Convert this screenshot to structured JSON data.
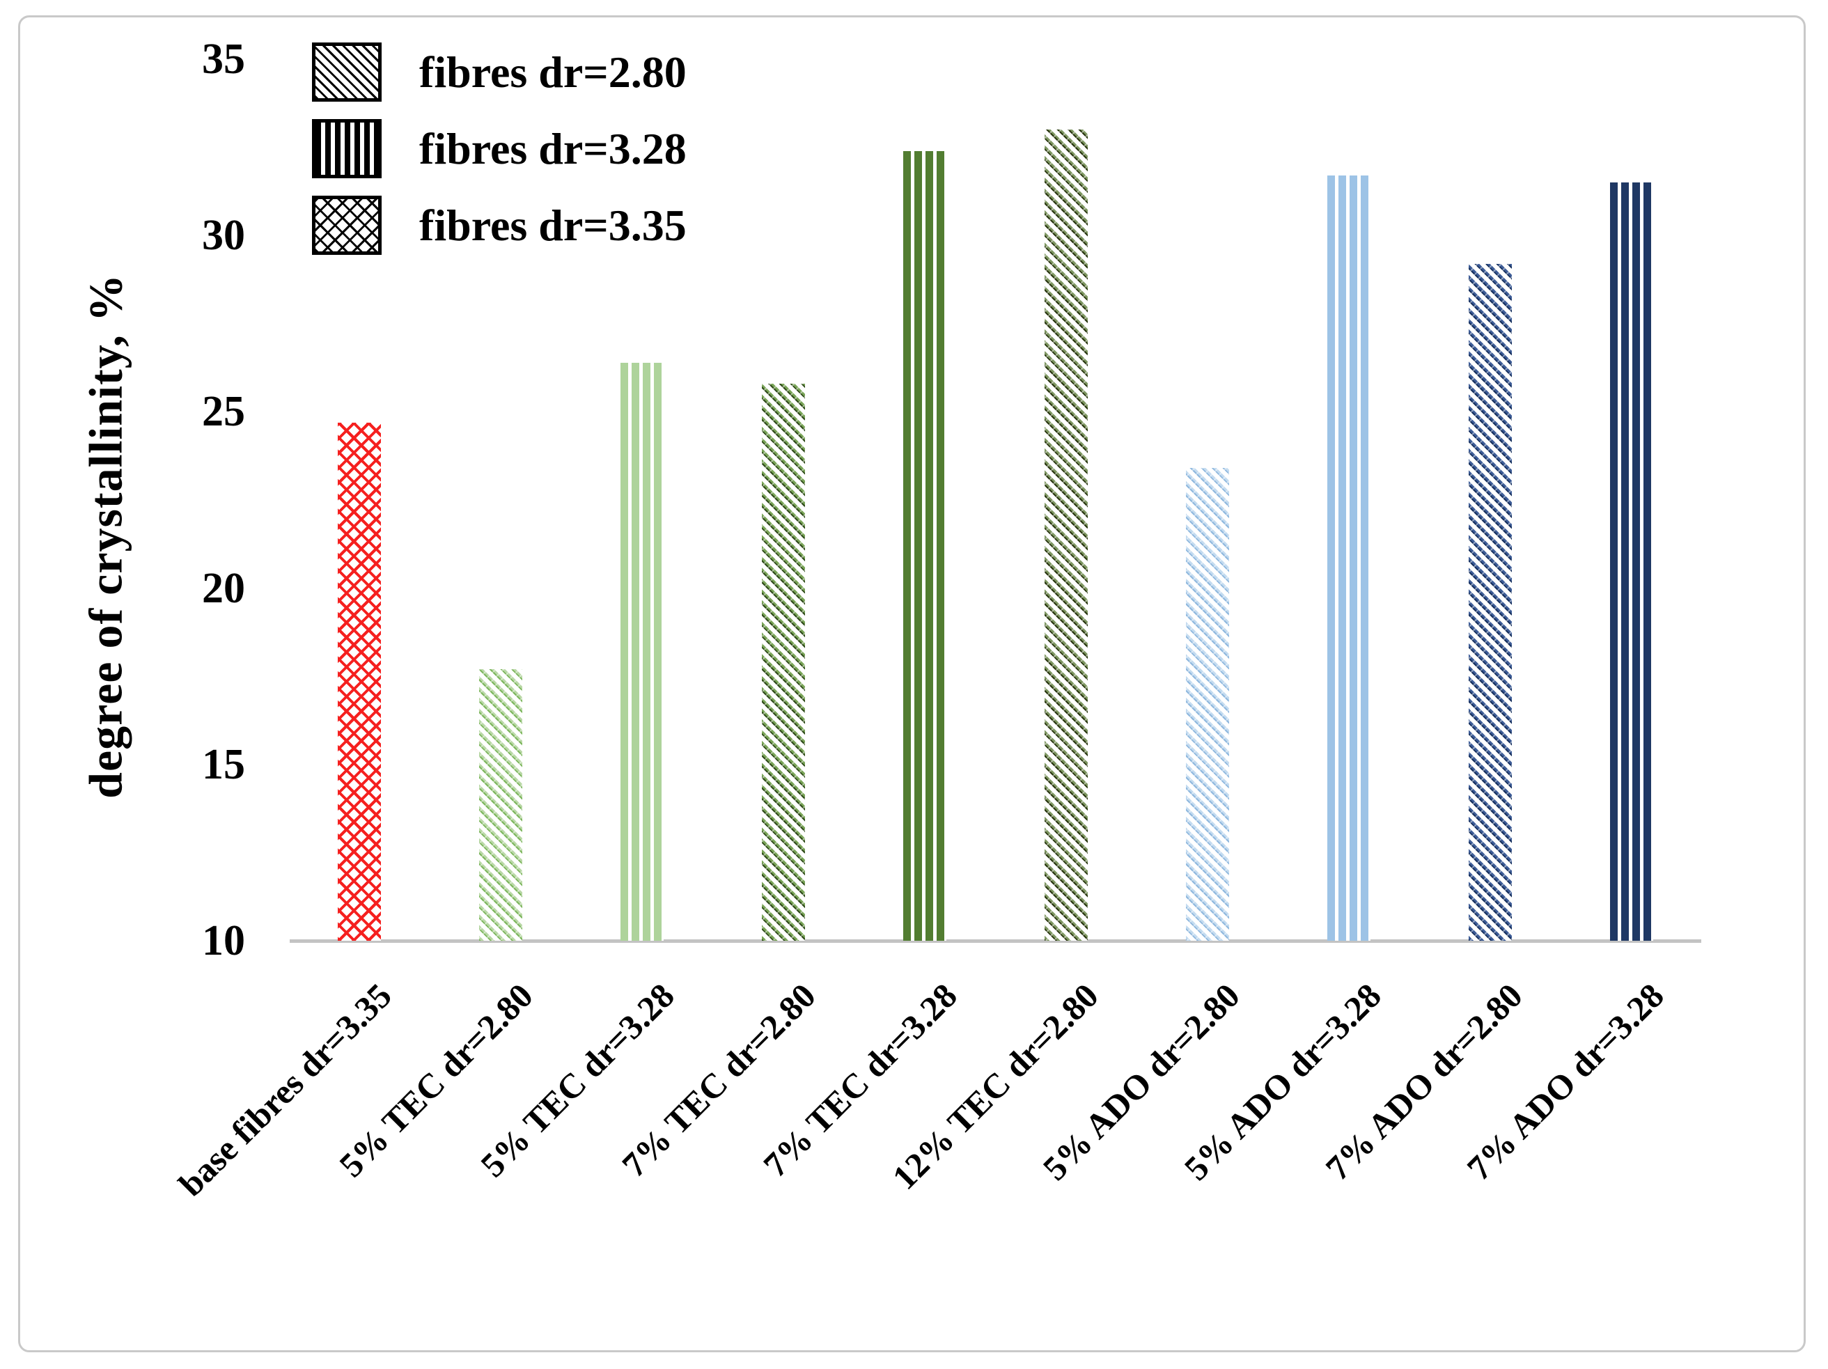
{
  "figure": {
    "background": "#ffffff",
    "border_color": "#c9c9c9",
    "axis_line_color": "#c3c3c3",
    "text_color": "#000000"
  },
  "chart_data": {
    "type": "bar",
    "title": "",
    "xlabel": "",
    "ylabel": "degree of crystallinity, %",
    "ylim": [
      10,
      35
    ],
    "yticks": [
      10,
      15,
      20,
      25,
      30,
      35
    ],
    "grid": false,
    "legend_position": "top-left",
    "legend": [
      {
        "label": "fibres dr=2.80",
        "pattern": "diagonal-hatch"
      },
      {
        "label": "fibres dr=3.28",
        "pattern": "vertical-stripes"
      },
      {
        "label": "fibres dr=3.35",
        "pattern": "crosshatch"
      }
    ],
    "categories": [
      "base fibres dr=3.35",
      "5% TEC dr=2.80",
      "5% TEC dr=3.28",
      "7% TEC dr=2.80",
      "7% TEC dr=3.28",
      "12% TEC dr=2.80",
      "5% ADO dr=2.80",
      "5% ADO dr=3.28",
      "7% ADO dr=2.80",
      "7% ADO dr=3.28"
    ],
    "values": [
      24.7,
      17.7,
      26.4,
      25.8,
      32.4,
      33.0,
      23.4,
      31.7,
      29.2,
      31.5
    ],
    "bars": [
      {
        "pattern": "crosshatch",
        "color": "#f5201f",
        "dot": "#f5201f"
      },
      {
        "pattern": "diagonal",
        "color": "#b9d8a6",
        "dot": "#7cb65c"
      },
      {
        "pattern": "vertical",
        "color": "#aed39b",
        "dot": "#aed39b"
      },
      {
        "pattern": "diagonal",
        "color": "#79a457",
        "dot": "#2f4a1a"
      },
      {
        "pattern": "vertical",
        "color": "#527d31",
        "dot": "#527d31"
      },
      {
        "pattern": "diagonal",
        "color": "#7d9660",
        "dot": "#28350f"
      },
      {
        "pattern": "diagonal",
        "color": "#c3dbf0",
        "dot": "#8fb8de"
      },
      {
        "pattern": "vertical",
        "color": "#9dc3e6",
        "dot": "#9dc3e6"
      },
      {
        "pattern": "diagonal",
        "color": "#3d5c97",
        "dot": "#16305e"
      },
      {
        "pattern": "vertical",
        "color": "#1f3864",
        "dot": "#1f3864"
      }
    ]
  }
}
